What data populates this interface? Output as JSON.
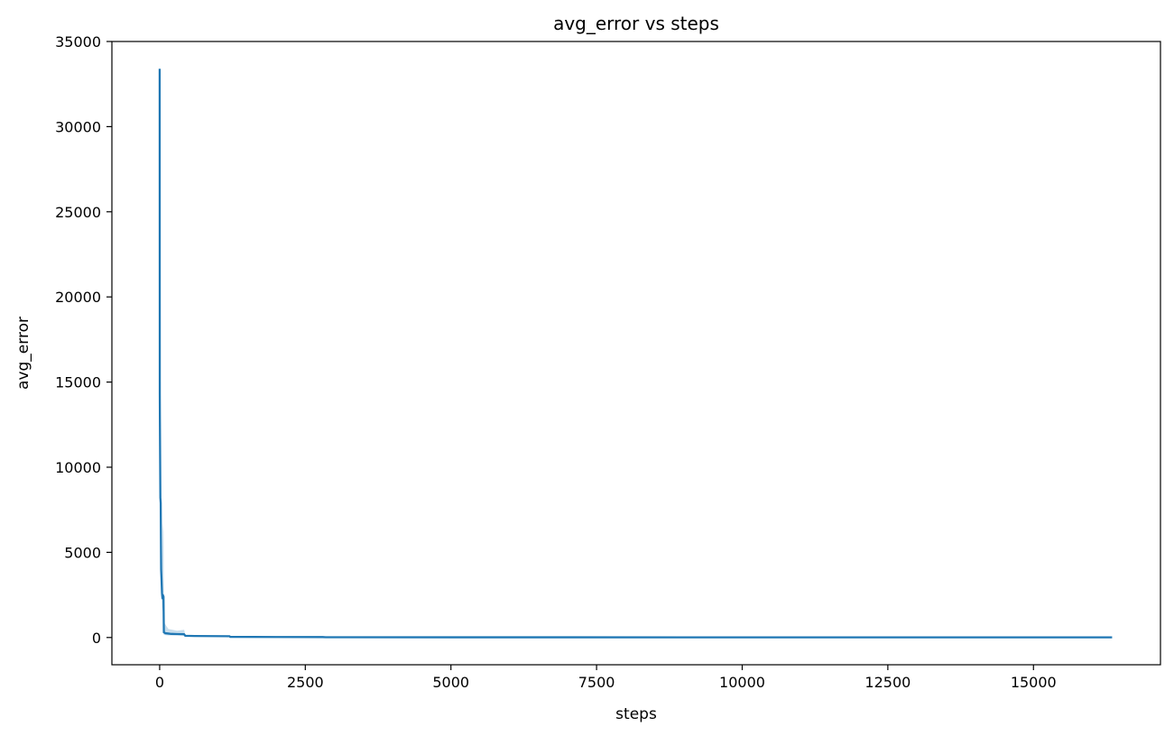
{
  "chart_data": {
    "type": "line",
    "title": "avg_error vs steps",
    "xlabel": "steps",
    "ylabel": "avg_error",
    "xlim": [
      -820,
      17180
    ],
    "ylim": [
      -1600,
      35000
    ],
    "x_ticks": [
      0,
      2500,
      5000,
      7500,
      10000,
      12500,
      15000
    ],
    "x_tick_labels": [
      "0",
      "2500",
      "5000",
      "7500",
      "10000",
      "12500",
      "15000"
    ],
    "y_ticks": [
      0,
      5000,
      10000,
      15000,
      20000,
      25000,
      30000,
      35000
    ],
    "y_tick_labels": [
      "0",
      "5000",
      "10000",
      "15000",
      "20000",
      "25000",
      "30000",
      "35000"
    ],
    "grid": false,
    "legend": "none",
    "series": [
      {
        "color": "#1f77b4",
        "points": [
          [
            0,
            33400
          ],
          [
            2,
            14300
          ],
          [
            4,
            12800
          ],
          [
            8,
            10500
          ],
          [
            12,
            8200
          ],
          [
            18,
            7900
          ],
          [
            25,
            4000
          ],
          [
            32,
            3400
          ],
          [
            40,
            2600
          ],
          [
            48,
            2300
          ],
          [
            55,
            2500
          ],
          [
            60,
            2450
          ],
          [
            66,
            2400
          ],
          [
            72,
            300
          ],
          [
            100,
            250
          ],
          [
            150,
            230
          ],
          [
            200,
            210
          ],
          [
            300,
            200
          ],
          [
            420,
            190
          ],
          [
            440,
            100
          ],
          [
            600,
            90
          ],
          [
            900,
            80
          ],
          [
            1200,
            75
          ],
          [
            1210,
            40
          ],
          [
            2000,
            30
          ],
          [
            2800,
            25
          ],
          [
            2850,
            15
          ],
          [
            5000,
            12
          ],
          [
            10000,
            10
          ],
          [
            16350,
            8
          ]
        ],
        "band_upper": [
          [
            0,
            33400
          ],
          [
            2,
            14500
          ],
          [
            8,
            10800
          ],
          [
            18,
            8200
          ],
          [
            25,
            5000
          ],
          [
            40,
            3800
          ],
          [
            55,
            6700
          ],
          [
            66,
            6200
          ],
          [
            72,
            900
          ],
          [
            150,
            500
          ],
          [
            300,
            400
          ],
          [
            420,
            450
          ],
          [
            440,
            150
          ],
          [
            1200,
            100
          ],
          [
            1210,
            60
          ],
          [
            2850,
            30
          ],
          [
            16350,
            10
          ]
        ],
        "band_lower": [
          [
            0,
            33400
          ],
          [
            2,
            14100
          ],
          [
            8,
            10200
          ],
          [
            18,
            7600
          ],
          [
            25,
            3200
          ],
          [
            40,
            1800
          ],
          [
            55,
            1500
          ],
          [
            66,
            1400
          ],
          [
            72,
            150
          ],
          [
            150,
            120
          ],
          [
            300,
            120
          ],
          [
            420,
            110
          ],
          [
            440,
            60
          ],
          [
            1200,
            50
          ],
          [
            1210,
            25
          ],
          [
            2850,
            5
          ],
          [
            16350,
            6
          ]
        ]
      }
    ]
  }
}
